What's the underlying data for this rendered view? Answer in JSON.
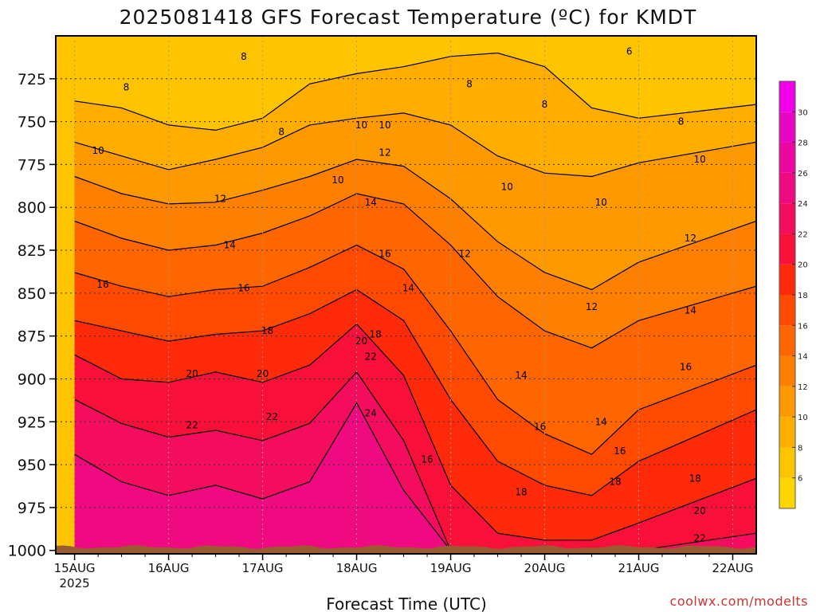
{
  "chart_data": {
    "type": "heatmap",
    "title": "2025081418 GFS Forecast Temperature (ºC) for KMDT",
    "xlabel": "Forecast Time (UTC)",
    "ylabel": "",
    "credit": "coolwx.com/modelts",
    "x_ticks": [
      "15AUG",
      "16AUG",
      "17AUG",
      "18AUG",
      "19AUG",
      "20AUG",
      "21AUG",
      "22AUG"
    ],
    "x_tick_year": "2025",
    "y_ticks": [
      725,
      750,
      775,
      800,
      825,
      850,
      875,
      900,
      925,
      950,
      975,
      1000
    ],
    "ylim": [
      1002,
      700
    ],
    "y_scale": "inverted",
    "grid": true,
    "colorbar": {
      "ticks": [
        6,
        8,
        10,
        12,
        14,
        16,
        18,
        20,
        22,
        24,
        26,
        28,
        30
      ],
      "bands": [
        {
          "min": 4,
          "max": 6,
          "color": "#FFD700"
        },
        {
          "min": 6,
          "max": 8,
          "color": "#FFC400"
        },
        {
          "min": 8,
          "max": 10,
          "color": "#FFAE00"
        },
        {
          "min": 10,
          "max": 12,
          "color": "#FF9900"
        },
        {
          "min": 12,
          "max": 14,
          "color": "#FF8000"
        },
        {
          "min": 14,
          "max": 16,
          "color": "#FF6600"
        },
        {
          "min": 16,
          "max": 18,
          "color": "#FF4A00"
        },
        {
          "min": 18,
          "max": 20,
          "color": "#FF2A0A"
        },
        {
          "min": 20,
          "max": 22,
          "color": "#F9103A"
        },
        {
          "min": 22,
          "max": 24,
          "color": "#F40C5E"
        },
        {
          "min": 24,
          "max": 26,
          "color": "#F00A82"
        },
        {
          "min": 26,
          "max": 28,
          "color": "#EC08A0"
        },
        {
          "min": 28,
          "max": 30,
          "color": "#E806C4"
        },
        {
          "min": 30,
          "max": 32,
          "color": "#F000E8"
        }
      ]
    },
    "contour_levels": [
      6,
      8,
      10,
      12,
      14,
      16,
      18,
      20,
      22,
      24
    ],
    "isotherms": [
      {
        "level": 8,
        "values": [
          738,
          742,
          752,
          755,
          748,
          728,
          722,
          718,
          712,
          710,
          718,
          742,
          748,
          740
        ]
      },
      {
        "level": 10,
        "values": [
          762,
          770,
          778,
          772,
          765,
          752,
          748,
          745,
          752,
          770,
          780,
          782,
          774,
          762
        ]
      },
      {
        "level": 12,
        "values": [
          782,
          792,
          798,
          797,
          790,
          782,
          772,
          776,
          795,
          820,
          838,
          848,
          832,
          808
        ]
      },
      {
        "level": 14,
        "values": [
          808,
          818,
          825,
          822,
          815,
          805,
          792,
          798,
          822,
          852,
          872,
          882,
          866,
          846
        ]
      },
      {
        "level": 16,
        "values": [
          838,
          846,
          852,
          848,
          846,
          835,
          822,
          836,
          872,
          912,
          932,
          944,
          918,
          892
        ]
      },
      {
        "level": 18,
        "values": [
          866,
          872,
          878,
          874,
          872,
          862,
          848,
          866,
          912,
          948,
          962,
          968,
          948,
          918
        ]
      },
      {
        "level": 20,
        "values": [
          886,
          900,
          902,
          896,
          902,
          892,
          868,
          898,
          962,
          990,
          994,
          994,
          984,
          958
        ]
      },
      {
        "level": 22,
        "values": [
          912,
          926,
          934,
          930,
          936,
          926,
          896,
          936,
          1000,
          1000,
          1000,
          1000,
          1000,
          990
        ]
      },
      {
        "level": 24,
        "values": [
          944,
          960,
          968,
          962,
          970,
          960,
          914,
          965,
          1000,
          1000,
          1000,
          1000,
          1000,
          1000
        ]
      }
    ],
    "isotherm_times": [
      0.0,
      0.5,
      1.0,
      1.5,
      2.0,
      2.5,
      3.0,
      3.5,
      4.0,
      4.5,
      5.0,
      5.5,
      6.0,
      7.25
    ],
    "labels": [
      {
        "text": "8",
        "t": 0.55,
        "p": 730
      },
      {
        "text": "8",
        "t": 1.8,
        "p": 712
      },
      {
        "text": "8",
        "t": 2.2,
        "p": 756
      },
      {
        "text": "8",
        "t": 4.2,
        "p": 728
      },
      {
        "text": "6",
        "t": 5.9,
        "p": 709
      },
      {
        "text": "8",
        "t": 5.0,
        "p": 740
      },
      {
        "text": "8",
        "t": 6.45,
        "p": 750
      },
      {
        "text": "10",
        "t": 0.25,
        "p": 767
      },
      {
        "text": "10",
        "t": 2.8,
        "p": 784
      },
      {
        "text": "10",
        "t": 3.05,
        "p": 752
      },
      {
        "text": "10",
        "t": 3.3,
        "p": 752
      },
      {
        "text": "10",
        "t": 4.6,
        "p": 788
      },
      {
        "text": "10",
        "t": 5.6,
        "p": 797
      },
      {
        "text": "10",
        "t": 6.65,
        "p": 772
      },
      {
        "text": "12",
        "t": 1.55,
        "p": 795
      },
      {
        "text": "12",
        "t": 3.3,
        "p": 768
      },
      {
        "text": "12",
        "t": 4.15,
        "p": 827
      },
      {
        "text": "12",
        "t": 5.5,
        "p": 858
      },
      {
        "text": "12",
        "t": 6.55,
        "p": 818
      },
      {
        "text": "14",
        "t": 1.65,
        "p": 822
      },
      {
        "text": "14",
        "t": 3.15,
        "p": 797
      },
      {
        "text": "14",
        "t": 3.55,
        "p": 847
      },
      {
        "text": "14",
        "t": 4.75,
        "p": 898
      },
      {
        "text": "14",
        "t": 5.6,
        "p": 925
      },
      {
        "text": "14",
        "t": 6.55,
        "p": 860
      },
      {
        "text": "16",
        "t": 0.3,
        "p": 845
      },
      {
        "text": "16",
        "t": 1.8,
        "p": 847
      },
      {
        "text": "16",
        "t": 3.3,
        "p": 827
      },
      {
        "text": "16",
        "t": 3.75,
        "p": 947
      },
      {
        "text": "16",
        "t": 4.95,
        "p": 928
      },
      {
        "text": "16",
        "t": 5.8,
        "p": 942
      },
      {
        "text": "16",
        "t": 6.5,
        "p": 893
      },
      {
        "text": "18",
        "t": 2.05,
        "p": 872
      },
      {
        "text": "18",
        "t": 3.2,
        "p": 874
      },
      {
        "text": "18",
        "t": 4.75,
        "p": 966
      },
      {
        "text": "18",
        "t": 5.75,
        "p": 960
      },
      {
        "text": "18",
        "t": 6.6,
        "p": 958
      },
      {
        "text": "20",
        "t": 1.25,
        "p": 897
      },
      {
        "text": "20",
        "t": 2.0,
        "p": 897
      },
      {
        "text": "20",
        "t": 3.05,
        "p": 878
      },
      {
        "text": "20",
        "t": 6.65,
        "p": 977
      },
      {
        "text": "22",
        "t": 1.25,
        "p": 927
      },
      {
        "text": "22",
        "t": 2.1,
        "p": 922
      },
      {
        "text": "22",
        "t": 3.15,
        "p": 887
      },
      {
        "text": "22",
        "t": 6.65,
        "p": 993
      },
      {
        "text": "24",
        "t": 3.15,
        "p": 920
      }
    ],
    "terrain_color": "#9A5A32"
  }
}
